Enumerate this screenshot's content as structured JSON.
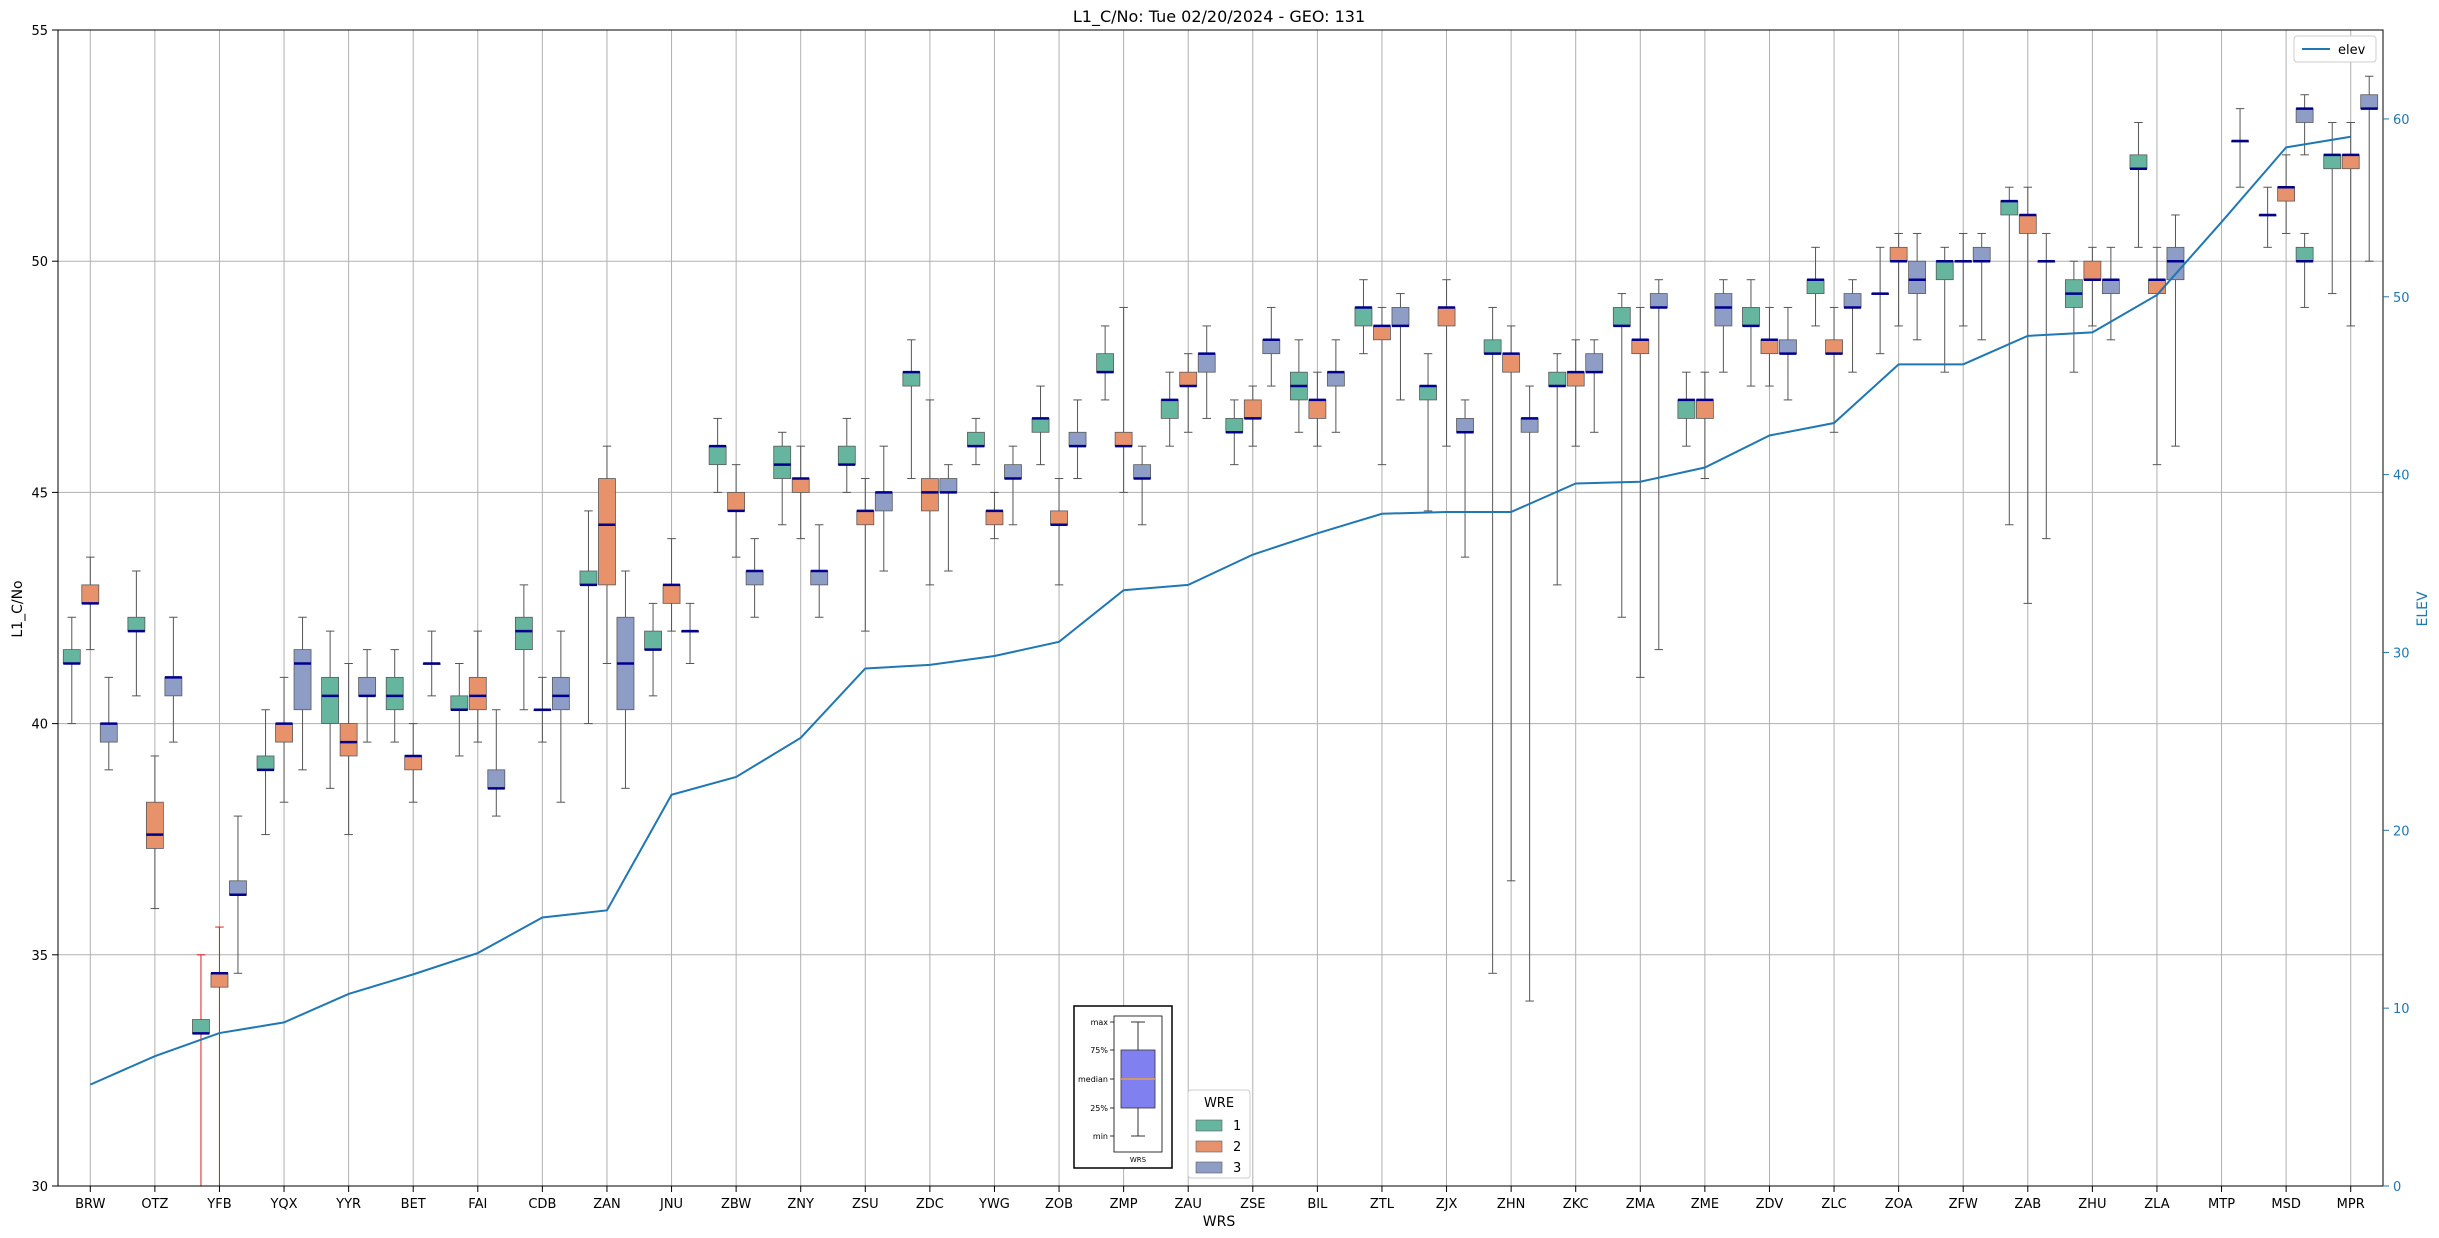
{
  "chart_data": {
    "type": "box",
    "title": "L1_C/No: Tue 02/20/2024 - GEO: 131",
    "xlabel": "WRS",
    "ylabel": "L1_C/No",
    "y2label": "ELEV",
    "ylim": [
      30,
      55
    ],
    "y2lim": [
      0,
      65
    ],
    "yticks": [
      30,
      35,
      40,
      45,
      50,
      55
    ],
    "y2ticks": [
      0,
      10,
      20,
      30,
      40,
      50,
      60
    ],
    "grid": true,
    "categories": [
      "BRW",
      "OTZ",
      "YFB",
      "YQX",
      "YYR",
      "BET",
      "FAI",
      "CDB",
      "ZAN",
      "JNU",
      "ZBW",
      "ZNY",
      "ZSU",
      "ZDC",
      "YWG",
      "ZOB",
      "ZMP",
      "ZAU",
      "ZSE",
      "BIL",
      "ZTL",
      "ZJX",
      "ZHN",
      "ZKC",
      "ZMA",
      "ZME",
      "ZDV",
      "ZLC",
      "ZOA",
      "ZFW",
      "ZAB",
      "ZHU",
      "ZLA",
      "MTP",
      "MSD",
      "MPR"
    ],
    "legend_title": "WRE",
    "legend_placement": "bottom-center",
    "series": [
      {
        "name": "1",
        "color": "#66b59e"
      },
      {
        "name": "2",
        "color": "#e8926c"
      },
      {
        "name": "3",
        "color": "#8d9dc6"
      }
    ],
    "median_color": "#00008b",
    "whisker_color": "#555555",
    "boxes": [
      {
        "cat": "BRW",
        "wre": 1,
        "min": 40.0,
        "q1": 41.3,
        "med": 41.3,
        "q3": 41.6,
        "max": 42.3
      },
      {
        "cat": "BRW",
        "wre": 2,
        "min": 41.6,
        "q1": 42.6,
        "med": 42.6,
        "q3": 43.0,
        "max": 43.6
      },
      {
        "cat": "BRW",
        "wre": 3,
        "min": 39.0,
        "q1": 39.6,
        "med": 40.0,
        "q3": 40.0,
        "max": 41.0
      },
      {
        "cat": "OTZ",
        "wre": 1,
        "min": 40.6,
        "q1": 42.0,
        "med": 42.0,
        "q3": 42.3,
        "max": 43.3
      },
      {
        "cat": "OTZ",
        "wre": 2,
        "min": 36.0,
        "q1": 37.3,
        "med": 37.6,
        "q3": 38.3,
        "max": 39.3
      },
      {
        "cat": "OTZ",
        "wre": 3,
        "min": 39.6,
        "q1": 40.6,
        "med": 41.0,
        "q3": 41.0,
        "max": 42.3
      },
      {
        "cat": "YFB",
        "wre": 1,
        "min": 30.0,
        "q1": 33.3,
        "med": 33.3,
        "q3": 33.6,
        "max": 35.0,
        "red": true
      },
      {
        "cat": "YFB",
        "wre": 2,
        "min": 30.0,
        "q1": 34.3,
        "med": 34.6,
        "q3": 34.6,
        "max": 35.6,
        "red": true
      },
      {
        "cat": "YFB",
        "wre": 3,
        "min": 34.6,
        "q1": 36.3,
        "med": 36.3,
        "q3": 36.6,
        "max": 38.0
      },
      {
        "cat": "YQX",
        "wre": 1,
        "min": 37.6,
        "q1": 39.0,
        "med": 39.0,
        "q3": 39.3,
        "max": 40.3
      },
      {
        "cat": "YQX",
        "wre": 2,
        "min": 38.3,
        "q1": 39.6,
        "med": 40.0,
        "q3": 40.0,
        "max": 41.0
      },
      {
        "cat": "YQX",
        "wre": 3,
        "min": 39.0,
        "q1": 40.3,
        "med": 41.3,
        "q3": 41.6,
        "max": 42.3
      },
      {
        "cat": "YYR",
        "wre": 1,
        "min": 38.6,
        "q1": 40.0,
        "med": 40.6,
        "q3": 41.0,
        "max": 42.0
      },
      {
        "cat": "YYR",
        "wre": 2,
        "min": 37.6,
        "q1": 39.3,
        "med": 39.6,
        "q3": 40.0,
        "max": 41.3
      },
      {
        "cat": "YYR",
        "wre": 3,
        "min": 39.6,
        "q1": 40.6,
        "med": 40.6,
        "q3": 41.0,
        "max": 41.6
      },
      {
        "cat": "BET",
        "wre": 1,
        "min": 39.6,
        "q1": 40.3,
        "med": 40.6,
        "q3": 41.0,
        "max": 41.6
      },
      {
        "cat": "BET",
        "wre": 2,
        "min": 38.3,
        "q1": 39.0,
        "med": 39.3,
        "q3": 39.3,
        "max": 40.0
      },
      {
        "cat": "BET",
        "wre": 3,
        "min": 40.6,
        "q1": 41.3,
        "med": 41.3,
        "q3": 41.3,
        "max": 42.0
      },
      {
        "cat": "FAI",
        "wre": 1,
        "min": 39.3,
        "q1": 40.3,
        "med": 40.3,
        "q3": 40.6,
        "max": 41.3
      },
      {
        "cat": "FAI",
        "wre": 2,
        "min": 39.6,
        "q1": 40.3,
        "med": 40.6,
        "q3": 41.0,
        "max": 42.0
      },
      {
        "cat": "FAI",
        "wre": 3,
        "min": 38.0,
        "q1": 38.6,
        "med": 38.6,
        "q3": 39.0,
        "max": 40.3
      },
      {
        "cat": "CDB",
        "wre": 1,
        "min": 40.3,
        "q1": 41.6,
        "med": 42.0,
        "q3": 42.3,
        "max": 43.0
      },
      {
        "cat": "CDB",
        "wre": 2,
        "min": 39.6,
        "q1": 40.3,
        "med": 40.3,
        "q3": 40.3,
        "max": 41.0
      },
      {
        "cat": "CDB",
        "wre": 3,
        "min": 38.3,
        "q1": 40.3,
        "med": 40.6,
        "q3": 41.0,
        "max": 42.0
      },
      {
        "cat": "ZAN",
        "wre": 1,
        "min": 40.0,
        "q1": 43.0,
        "med": 43.0,
        "q3": 43.3,
        "max": 44.6
      },
      {
        "cat": "ZAN",
        "wre": 2,
        "min": 41.3,
        "q1": 43.0,
        "med": 44.3,
        "q3": 45.3,
        "max": 46.0
      },
      {
        "cat": "ZAN",
        "wre": 3,
        "min": 38.6,
        "q1": 40.3,
        "med": 41.3,
        "q3": 42.3,
        "max": 43.3
      },
      {
        "cat": "JNU",
        "wre": 1,
        "min": 40.6,
        "q1": 41.6,
        "med": 41.6,
        "q3": 42.0,
        "max": 42.6
      },
      {
        "cat": "JNU",
        "wre": 2,
        "min": 42.0,
        "q1": 42.6,
        "med": 43.0,
        "q3": 43.0,
        "max": 44.0
      },
      {
        "cat": "JNU",
        "wre": 3,
        "min": 41.3,
        "q1": 42.0,
        "med": 42.0,
        "q3": 42.0,
        "max": 42.6
      },
      {
        "cat": "ZBW",
        "wre": 1,
        "min": 45.0,
        "q1": 45.6,
        "med": 46.0,
        "q3": 46.0,
        "max": 46.6
      },
      {
        "cat": "ZBW",
        "wre": 2,
        "min": 43.6,
        "q1": 44.6,
        "med": 44.6,
        "q3": 45.0,
        "max": 45.6
      },
      {
        "cat": "ZBW",
        "wre": 3,
        "min": 42.3,
        "q1": 43.0,
        "med": 43.3,
        "q3": 43.3,
        "max": 44.0
      },
      {
        "cat": "ZNY",
        "wre": 1,
        "min": 44.3,
        "q1": 45.3,
        "med": 45.6,
        "q3": 46.0,
        "max": 46.3
      },
      {
        "cat": "ZNY",
        "wre": 2,
        "min": 44.0,
        "q1": 45.0,
        "med": 45.3,
        "q3": 45.3,
        "max": 46.0
      },
      {
        "cat": "ZNY",
        "wre": 3,
        "min": 42.3,
        "q1": 43.0,
        "med": 43.3,
        "q3": 43.3,
        "max": 44.3
      },
      {
        "cat": "ZSU",
        "wre": 1,
        "min": 45.0,
        "q1": 45.6,
        "med": 45.6,
        "q3": 46.0,
        "max": 46.6
      },
      {
        "cat": "ZSU",
        "wre": 2,
        "min": 42.0,
        "q1": 44.3,
        "med": 44.6,
        "q3": 44.6,
        "max": 45.3
      },
      {
        "cat": "ZSU",
        "wre": 3,
        "min": 43.3,
        "q1": 44.6,
        "med": 45.0,
        "q3": 45.0,
        "max": 46.0
      },
      {
        "cat": "ZDC",
        "wre": 1,
        "min": 45.3,
        "q1": 47.3,
        "med": 47.6,
        "q3": 47.6,
        "max": 48.3
      },
      {
        "cat": "ZDC",
        "wre": 2,
        "min": 43.0,
        "q1": 44.6,
        "med": 45.0,
        "q3": 45.3,
        "max": 47.0
      },
      {
        "cat": "ZDC",
        "wre": 3,
        "min": 43.3,
        "q1": 45.0,
        "med": 45.0,
        "q3": 45.3,
        "max": 45.6
      },
      {
        "cat": "YWG",
        "wre": 1,
        "min": 45.6,
        "q1": 46.0,
        "med": 46.0,
        "q3": 46.3,
        "max": 46.6
      },
      {
        "cat": "YWG",
        "wre": 2,
        "min": 44.0,
        "q1": 44.3,
        "med": 44.6,
        "q3": 44.6,
        "max": 45.0
      },
      {
        "cat": "YWG",
        "wre": 3,
        "min": 44.3,
        "q1": 45.3,
        "med": 45.3,
        "q3": 45.6,
        "max": 46.0
      },
      {
        "cat": "ZOB",
        "wre": 1,
        "min": 45.6,
        "q1": 46.3,
        "med": 46.6,
        "q3": 46.6,
        "max": 47.3
      },
      {
        "cat": "ZOB",
        "wre": 2,
        "min": 43.0,
        "q1": 44.3,
        "med": 44.3,
        "q3": 44.6,
        "max": 45.3
      },
      {
        "cat": "ZOB",
        "wre": 3,
        "min": 45.3,
        "q1": 46.0,
        "med": 46.0,
        "q3": 46.3,
        "max": 47.0
      },
      {
        "cat": "ZMP",
        "wre": 1,
        "min": 47.0,
        "q1": 47.6,
        "med": 47.6,
        "q3": 48.0,
        "max": 48.6
      },
      {
        "cat": "ZMP",
        "wre": 2,
        "min": 45.0,
        "q1": 46.0,
        "med": 46.0,
        "q3": 46.3,
        "max": 49.0
      },
      {
        "cat": "ZMP",
        "wre": 3,
        "min": 44.3,
        "q1": 45.3,
        "med": 45.3,
        "q3": 45.6,
        "max": 46.0
      },
      {
        "cat": "ZAU",
        "wre": 1,
        "min": 46.0,
        "q1": 46.6,
        "med": 47.0,
        "q3": 47.0,
        "max": 47.6
      },
      {
        "cat": "ZAU",
        "wre": 2,
        "min": 46.3,
        "q1": 47.3,
        "med": 47.3,
        "q3": 47.6,
        "max": 48.0
      },
      {
        "cat": "ZAU",
        "wre": 3,
        "min": 46.6,
        "q1": 47.6,
        "med": 48.0,
        "q3": 48.0,
        "max": 48.6
      },
      {
        "cat": "ZSE",
        "wre": 1,
        "min": 45.6,
        "q1": 46.3,
        "med": 46.3,
        "q3": 46.6,
        "max": 47.0
      },
      {
        "cat": "ZSE",
        "wre": 2,
        "min": 46.0,
        "q1": 46.6,
        "med": 46.6,
        "q3": 47.0,
        "max": 47.3
      },
      {
        "cat": "ZSE",
        "wre": 3,
        "min": 47.3,
        "q1": 48.0,
        "med": 48.3,
        "q3": 48.3,
        "max": 49.0
      },
      {
        "cat": "BIL",
        "wre": 1,
        "min": 46.3,
        "q1": 47.0,
        "med": 47.3,
        "q3": 47.6,
        "max": 48.3
      },
      {
        "cat": "BIL",
        "wre": 2,
        "min": 46.0,
        "q1": 46.6,
        "med": 47.0,
        "q3": 47.0,
        "max": 47.6
      },
      {
        "cat": "BIL",
        "wre": 3,
        "min": 46.3,
        "q1": 47.3,
        "med": 47.6,
        "q3": 47.6,
        "max": 48.3
      },
      {
        "cat": "ZTL",
        "wre": 1,
        "min": 48.0,
        "q1": 48.6,
        "med": 49.0,
        "q3": 49.0,
        "max": 49.6
      },
      {
        "cat": "ZTL",
        "wre": 2,
        "min": 45.6,
        "q1": 48.3,
        "med": 48.6,
        "q3": 48.6,
        "max": 49.0
      },
      {
        "cat": "ZTL",
        "wre": 3,
        "min": 47.0,
        "q1": 48.6,
        "med": 48.6,
        "q3": 49.0,
        "max": 49.3
      },
      {
        "cat": "ZJX",
        "wre": 1,
        "min": 44.6,
        "q1": 47.0,
        "med": 47.3,
        "q3": 47.3,
        "max": 48.0
      },
      {
        "cat": "ZJX",
        "wre": 2,
        "min": 46.0,
        "q1": 48.6,
        "med": 49.0,
        "q3": 49.0,
        "max": 49.6
      },
      {
        "cat": "ZJX",
        "wre": 3,
        "min": 43.6,
        "q1": 46.3,
        "med": 46.3,
        "q3": 46.6,
        "max": 47.0
      },
      {
        "cat": "ZHN",
        "wre": 1,
        "min": 34.6,
        "q1": 48.0,
        "med": 48.0,
        "q3": 48.3,
        "max": 49.0
      },
      {
        "cat": "ZHN",
        "wre": 2,
        "min": 36.6,
        "q1": 47.6,
        "med": 48.0,
        "q3": 48.0,
        "max": 48.6
      },
      {
        "cat": "ZHN",
        "wre": 3,
        "min": 34.0,
        "q1": 46.3,
        "med": 46.6,
        "q3": 46.6,
        "max": 47.3
      },
      {
        "cat": "ZKC",
        "wre": 1,
        "min": 43.0,
        "q1": 47.3,
        "med": 47.3,
        "q3": 47.6,
        "max": 48.0
      },
      {
        "cat": "ZKC",
        "wre": 2,
        "min": 46.0,
        "q1": 47.3,
        "med": 47.6,
        "q3": 47.6,
        "max": 48.3
      },
      {
        "cat": "ZKC",
        "wre": 3,
        "min": 46.3,
        "q1": 47.6,
        "med": 47.6,
        "q3": 48.0,
        "max": 48.3
      },
      {
        "cat": "ZMA",
        "wre": 1,
        "min": 42.3,
        "q1": 48.6,
        "med": 48.6,
        "q3": 49.0,
        "max": 49.3
      },
      {
        "cat": "ZMA",
        "wre": 2,
        "min": 41.0,
        "q1": 48.0,
        "med": 48.3,
        "q3": 48.3,
        "max": 49.0
      },
      {
        "cat": "ZMA",
        "wre": 3,
        "min": 41.6,
        "q1": 49.0,
        "med": 49.0,
        "q3": 49.3,
        "max": 49.6
      },
      {
        "cat": "ZME",
        "wre": 1,
        "min": 46.0,
        "q1": 46.6,
        "med": 47.0,
        "q3": 47.0,
        "max": 47.6
      },
      {
        "cat": "ZME",
        "wre": 2,
        "min": 45.3,
        "q1": 46.6,
        "med": 47.0,
        "q3": 47.0,
        "max": 47.6
      },
      {
        "cat": "ZME",
        "wre": 3,
        "min": 47.6,
        "q1": 48.6,
        "med": 49.0,
        "q3": 49.3,
        "max": 49.6
      },
      {
        "cat": "ZDV",
        "wre": 1,
        "min": 47.3,
        "q1": 48.6,
        "med": 48.6,
        "q3": 49.0,
        "max": 49.6
      },
      {
        "cat": "ZDV",
        "wre": 2,
        "min": 47.3,
        "q1": 48.0,
        "med": 48.3,
        "q3": 48.3,
        "max": 49.0
      },
      {
        "cat": "ZDV",
        "wre": 3,
        "min": 47.0,
        "q1": 48.0,
        "med": 48.0,
        "q3": 48.3,
        "max": 49.0
      },
      {
        "cat": "ZLC",
        "wre": 1,
        "min": 48.6,
        "q1": 49.3,
        "med": 49.6,
        "q3": 49.6,
        "max": 50.3
      },
      {
        "cat": "ZLC",
        "wre": 2,
        "min": 46.3,
        "q1": 48.0,
        "med": 48.0,
        "q3": 48.3,
        "max": 49.0
      },
      {
        "cat": "ZLC",
        "wre": 3,
        "min": 47.6,
        "q1": 49.0,
        "med": 49.0,
        "q3": 49.3,
        "max": 49.6
      },
      {
        "cat": "ZOA",
        "wre": 1,
        "min": 48.0,
        "q1": 49.3,
        "med": 49.3,
        "q3": 49.3,
        "max": 50.3
      },
      {
        "cat": "ZOA",
        "wre": 2,
        "min": 48.6,
        "q1": 50.0,
        "med": 50.0,
        "q3": 50.3,
        "max": 50.6
      },
      {
        "cat": "ZOA",
        "wre": 3,
        "min": 48.3,
        "q1": 49.3,
        "med": 49.6,
        "q3": 50.0,
        "max": 50.6
      },
      {
        "cat": "ZFW",
        "wre": 1,
        "min": 47.6,
        "q1": 49.6,
        "med": 50.0,
        "q3": 50.0,
        "max": 50.3
      },
      {
        "cat": "ZFW",
        "wre": 2,
        "min": 48.6,
        "q1": 50.0,
        "med": 50.0,
        "q3": 50.0,
        "max": 50.6
      },
      {
        "cat": "ZFW",
        "wre": 3,
        "min": 48.3,
        "q1": 50.0,
        "med": 50.0,
        "q3": 50.3,
        "max": 50.6
      },
      {
        "cat": "ZAB",
        "wre": 1,
        "min": 44.3,
        "q1": 51.0,
        "med": 51.3,
        "q3": 51.3,
        "max": 51.6
      },
      {
        "cat": "ZAB",
        "wre": 2,
        "min": 42.6,
        "q1": 50.6,
        "med": 51.0,
        "q3": 51.0,
        "max": 51.6
      },
      {
        "cat": "ZAB",
        "wre": 3,
        "min": 44.0,
        "q1": 50.0,
        "med": 50.0,
        "q3": 50.0,
        "max": 50.6
      },
      {
        "cat": "ZHU",
        "wre": 1,
        "min": 47.6,
        "q1": 49.0,
        "med": 49.3,
        "q3": 49.6,
        "max": 50.0
      },
      {
        "cat": "ZHU",
        "wre": 2,
        "min": 48.6,
        "q1": 49.6,
        "med": 49.6,
        "q3": 50.0,
        "max": 50.3
      },
      {
        "cat": "ZHU",
        "wre": 3,
        "min": 48.3,
        "q1": 49.3,
        "med": 49.6,
        "q3": 49.6,
        "max": 50.3
      },
      {
        "cat": "ZLA",
        "wre": 1,
        "min": 50.3,
        "q1": 52.0,
        "med": 52.0,
        "q3": 52.3,
        "max": 53.0
      },
      {
        "cat": "ZLA",
        "wre": 2,
        "min": 45.6,
        "q1": 49.3,
        "med": 49.6,
        "q3": 49.6,
        "max": 50.3
      },
      {
        "cat": "ZLA",
        "wre": 3,
        "min": 46.0,
        "q1": 49.6,
        "med": 50.0,
        "q3": 50.3,
        "max": 51.0
      },
      {
        "cat": "MTP",
        "wre": 3,
        "min": 51.6,
        "q1": 52.6,
        "med": 52.6,
        "q3": 52.6,
        "max": 53.3
      },
      {
        "cat": "MSD",
        "wre": 1,
        "min": 50.3,
        "q1": 51.0,
        "med": 51.0,
        "q3": 51.0,
        "max": 51.6
      },
      {
        "cat": "MSD",
        "wre": 1,
        "min": 49.0,
        "q1": 50.0,
        "med": 50.0,
        "q3": 50.3,
        "max": 50.6,
        "slot": 3
      },
      {
        "cat": "MSD",
        "wre": 2,
        "min": 50.6,
        "q1": 51.3,
        "med": 51.6,
        "q3": 51.6,
        "max": 52.3
      },
      {
        "cat": "MSD",
        "wre": 3,
        "min": 52.3,
        "q1": 53.0,
        "med": 53.3,
        "q3": 53.3,
        "max": 53.6
      },
      {
        "cat": "MPR",
        "wre": 1,
        "min": 49.3,
        "q1": 52.0,
        "med": 52.3,
        "q3": 52.3,
        "max": 53.0
      },
      {
        "cat": "MPR",
        "wre": 2,
        "min": 48.6,
        "q1": 52.0,
        "med": 52.3,
        "q3": 52.3,
        "max": 53.0
      },
      {
        "cat": "MPR",
        "wre": 3,
        "min": 50.0,
        "q1": 53.3,
        "med": 53.3,
        "q3": 53.6,
        "max": 54.0
      }
    ],
    "elev_series": {
      "name": "elev",
      "color": "#1f77b4",
      "values": [
        5.7,
        7.3,
        8.6,
        9.2,
        10.8,
        11.9,
        13.1,
        15.1,
        15.5,
        22.0,
        23.0,
        25.2,
        29.1,
        29.3,
        29.8,
        30.6,
        33.5,
        33.8,
        35.5,
        36.7,
        37.8,
        37.9,
        37.9,
        39.5,
        39.6,
        40.4,
        42.2,
        42.9,
        46.2,
        46.2,
        47.8,
        48.0,
        50.1,
        54.2,
        58.4,
        59.0
      ]
    },
    "legend_inset": {
      "labels": [
        "max",
        "75%",
        "median",
        "25%",
        "min"
      ],
      "xlabel": "WRS"
    }
  }
}
